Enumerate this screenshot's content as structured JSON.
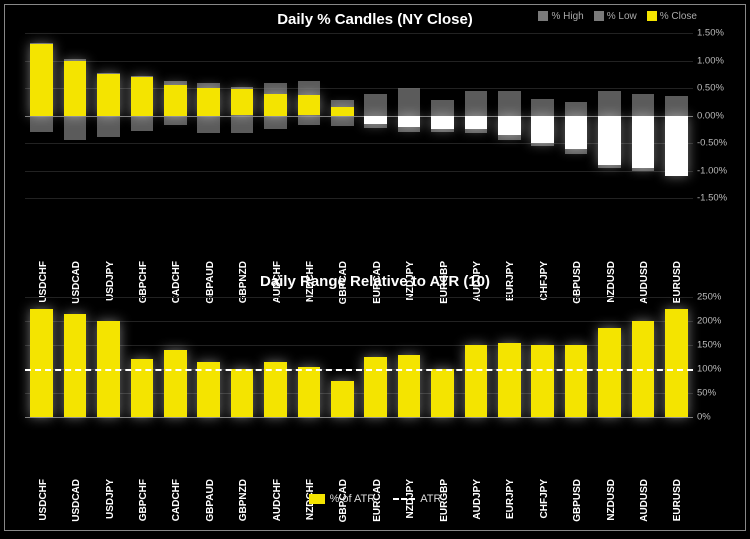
{
  "colors": {
    "background": "#000000",
    "title": "#ffffff",
    "axis_text": "#bbbbbb",
    "xlabel_text": "#ffffff",
    "grid": "#222222",
    "zero_line": "#777777",
    "series_close_pos": "#f4e400",
    "series_close_neg": "#ffffff",
    "series_highlow": "#7a7a7a",
    "atr_bar": "#f4e400",
    "atr_line": "#ffffff",
    "legend_text": "#aaaaaa",
    "frame_border": "#888888"
  },
  "typography": {
    "title_fontsize_pt": 14,
    "axis_fontsize_pt": 9.5,
    "xlabel_fontsize_pt": 10,
    "legend_fontsize_pt": 10
  },
  "pairs": [
    "USDCHF",
    "USDCAD",
    "USDJPY",
    "GBPCHF",
    "CADCHF",
    "GBPAUD",
    "GBPNZD",
    "AUDCHF",
    "NZDCHF",
    "GBPCAD",
    "EURCAD",
    "NZDJPY",
    "EURGBP",
    "AUDJPY",
    "EURJPY",
    "CHFJPY",
    "GBPUSD",
    "NZDUSD",
    "AUDUSD",
    "EURUSD"
  ],
  "candles_chart": {
    "type": "bar",
    "title": "Daily % Candles (NY Close)",
    "ylim": [
      -1.5,
      1.5
    ],
    "ytick_step": 0.5,
    "ytick_suffix": "%",
    "yticks": [
      "-1.50%",
      "-1.00%",
      "-0.50%",
      "0.00%",
      "0.50%",
      "1.00%",
      "1.50%"
    ],
    "legend": [
      {
        "label": "% High",
        "color": "#7a7a7a"
      },
      {
        "label": "% Low",
        "color": "#7a7a7a"
      },
      {
        "label": "% Close",
        "color": "#f4e400"
      }
    ],
    "series": [
      {
        "pair": "USDCHF",
        "high": 1.32,
        "low": -0.3,
        "close": 1.3
      },
      {
        "pair": "USDCAD",
        "high": 1.02,
        "low": -0.45,
        "close": 1.0
      },
      {
        "pair": "USDJPY",
        "high": 0.78,
        "low": -0.4,
        "close": 0.75
      },
      {
        "pair": "GBPCHF",
        "high": 0.72,
        "low": -0.28,
        "close": 0.7
      },
      {
        "pair": "CADCHF",
        "high": 0.62,
        "low": -0.18,
        "close": 0.55
      },
      {
        "pair": "GBPAUD",
        "high": 0.6,
        "low": -0.32,
        "close": 0.5
      },
      {
        "pair": "GBPNZD",
        "high": 0.52,
        "low": -0.32,
        "close": 0.48
      },
      {
        "pair": "AUDCHF",
        "high": 0.6,
        "low": -0.25,
        "close": 0.4
      },
      {
        "pair": "NZDCHF",
        "high": 0.62,
        "low": -0.18,
        "close": 0.38
      },
      {
        "pair": "GBPCAD",
        "high": 0.28,
        "low": -0.2,
        "close": 0.15
      },
      {
        "pair": "EURCAD",
        "high": 0.4,
        "low": -0.22,
        "close": -0.15
      },
      {
        "pair": "NZDJPY",
        "high": 0.5,
        "low": -0.3,
        "close": -0.2
      },
      {
        "pair": "EURGBP",
        "high": 0.28,
        "low": -0.3,
        "close": -0.25
      },
      {
        "pair": "AUDJPY",
        "high": 0.45,
        "low": -0.32,
        "close": -0.25
      },
      {
        "pair": "EURJPY",
        "high": 0.45,
        "low": -0.45,
        "close": -0.35
      },
      {
        "pair": "CHFJPY",
        "high": 0.3,
        "low": -0.55,
        "close": -0.5
      },
      {
        "pair": "GBPUSD",
        "high": 0.25,
        "low": -0.7,
        "close": -0.6
      },
      {
        "pair": "NZDUSD",
        "high": 0.45,
        "low": -0.95,
        "close": -0.9
      },
      {
        "pair": "AUDUSD",
        "high": 0.4,
        "low": -1.0,
        "close": -0.95
      },
      {
        "pair": "EURUSD",
        "high": 0.35,
        "low": -1.1,
        "close": -1.1
      }
    ]
  },
  "atr_chart": {
    "type": "bar",
    "title": "Daily Range Relative to ATR (10)",
    "ylim": [
      0,
      250
    ],
    "ytick_step": 50,
    "ytick_suffix": "%",
    "yticks": [
      "0%",
      "50%",
      "100%",
      "150%",
      "200%",
      "250%"
    ],
    "atr_reference": 100,
    "legend": [
      {
        "label": "% of ATR",
        "type": "swatch",
        "color": "#f4e400"
      },
      {
        "label": "ATR",
        "type": "dash",
        "color": "#ffffff"
      }
    ],
    "series": [
      {
        "pair": "USDCHF",
        "value": 225
      },
      {
        "pair": "USDCAD",
        "value": 215
      },
      {
        "pair": "USDJPY",
        "value": 200
      },
      {
        "pair": "GBPCHF",
        "value": 120
      },
      {
        "pair": "CADCHF",
        "value": 140
      },
      {
        "pair": "GBPAUD",
        "value": 115
      },
      {
        "pair": "GBPNZD",
        "value": 100
      },
      {
        "pair": "AUDCHF",
        "value": 115
      },
      {
        "pair": "NZDCHF",
        "value": 105
      },
      {
        "pair": "GBPCAD",
        "value": 75
      },
      {
        "pair": "EURCAD",
        "value": 125
      },
      {
        "pair": "NZDJPY",
        "value": 130
      },
      {
        "pair": "EURGBP",
        "value": 100
      },
      {
        "pair": "AUDJPY",
        "value": 150
      },
      {
        "pair": "EURJPY",
        "value": 155
      },
      {
        "pair": "CHFJPY",
        "value": 150
      },
      {
        "pair": "GBPUSD",
        "value": 150
      },
      {
        "pair": "NZDUSD",
        "value": 185
      },
      {
        "pair": "AUDUSD",
        "value": 200
      },
      {
        "pair": "EURUSD",
        "value": 225
      }
    ]
  }
}
